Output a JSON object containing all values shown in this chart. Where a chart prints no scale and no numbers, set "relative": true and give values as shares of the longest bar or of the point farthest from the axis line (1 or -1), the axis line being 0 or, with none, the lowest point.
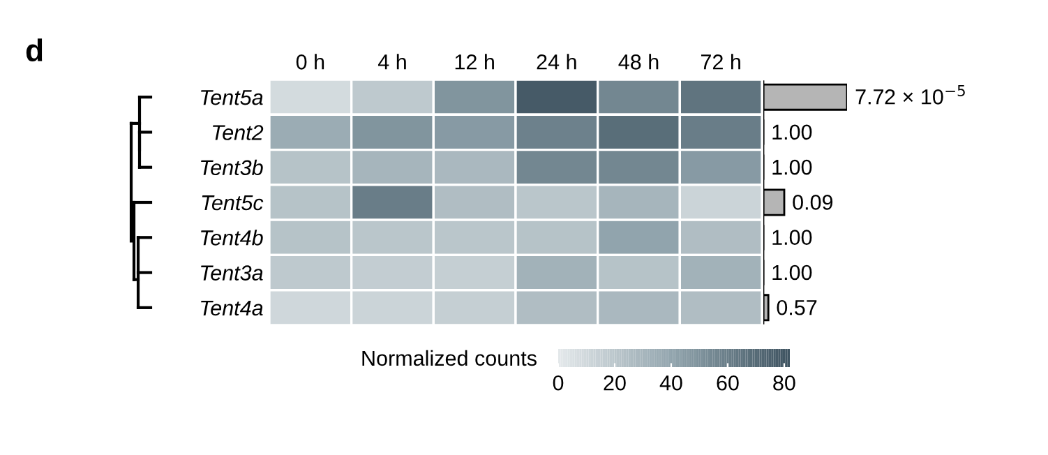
{
  "chart_data": [
    {
      "type": "heatmap",
      "categories": [
        "0 h",
        "4 h",
        "12 h",
        "24 h",
        "48 h",
        "72 h"
      ],
      "y_categories": [
        "Tent5a",
        "Tent2",
        "Tent3b",
        "Tent5c",
        "Tent4b",
        "Tent3a",
        "Tent4a"
      ],
      "cells": [
        [
          8,
          18,
          48,
          78,
          55,
          65
        ],
        [
          35,
          48,
          45,
          58,
          68,
          60
        ],
        [
          22,
          30,
          28,
          55,
          55,
          45
        ],
        [
          22,
          60,
          25,
          20,
          30,
          12
        ],
        [
          22,
          20,
          20,
          22,
          40,
          25
        ],
        [
          18,
          16,
          15,
          32,
          22,
          32
        ],
        [
          10,
          12,
          15,
          25,
          28,
          25
        ]
      ],
      "clim": [
        0,
        82
      ],
      "cticks": [
        0,
        20,
        40,
        60,
        80
      ],
      "clabel": "Normalized counts",
      "annotations": [
        "d"
      ]
    },
    {
      "type": "bar",
      "orientation": "horizontal",
      "relative": true,
      "categories": [
        null,
        null,
        null,
        null,
        null,
        null,
        null
      ],
      "values": [
        1,
        0,
        0,
        0.25,
        0,
        0,
        0.06
      ],
      "color": "#b5b5b5",
      "annotations": [
        "7.72 × 10$^{−5}$",
        "1.00",
        "1.00",
        "0.09",
        "1.00",
        "1.00",
        "0.57"
      ]
    }
  ]
}
